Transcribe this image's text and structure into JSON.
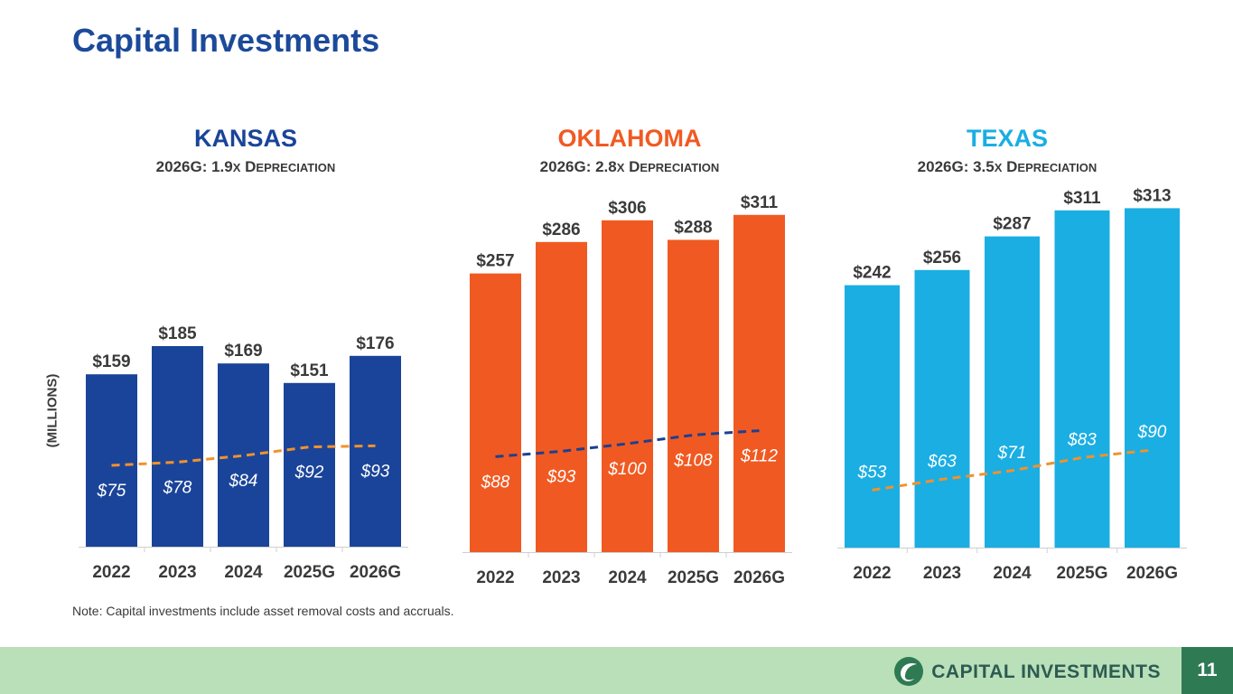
{
  "page": {
    "title": "Capital Investments",
    "y_unit_label": "(MILLIONS)",
    "note": "Note: Capital investments include asset removal costs and accruals."
  },
  "states": [
    {
      "name": "KANSAS",
      "subtitle_prefix": "2026G: 1.9",
      "subtitle_x": "X",
      "subtitle_d": "D",
      "subtitle_rest": "EPRECIATION",
      "color": "#1a4499"
    },
    {
      "name": "OKLAHOMA",
      "subtitle_prefix": "2026G: 2.8",
      "subtitle_x": "X",
      "subtitle_d": "D",
      "subtitle_rest": "EPRECIATION",
      "color": "#f05a22"
    },
    {
      "name": "TEXAS",
      "subtitle_prefix": "2026G: 3.5",
      "subtitle_x": "X",
      "subtitle_d": "D",
      "subtitle_rest": "EPRECIATION",
      "color": "#1aaee3"
    }
  ],
  "chart_data": [
    {
      "type": "bar",
      "title": "KANSAS",
      "categories": [
        "2022",
        "2023",
        "2024",
        "2025G",
        "2026G"
      ],
      "series": [
        {
          "name": "Capital Investments",
          "values": [
            159,
            185,
            169,
            151,
            176
          ],
          "labels": [
            "$159",
            "$185",
            "$169",
            "$151",
            "$176"
          ],
          "color": "#1a4499"
        },
        {
          "name": "Depreciation",
          "type": "line",
          "values": [
            75,
            78,
            84,
            92,
            93
          ],
          "labels": [
            "$75",
            "$78",
            "$84",
            "$92",
            "$93"
          ],
          "color": "#f0922e"
        }
      ],
      "ylim": [
        0,
        330
      ]
    },
    {
      "type": "bar",
      "title": "OKLAHOMA",
      "categories": [
        "2022",
        "2023",
        "2024",
        "2025G",
        "2026G"
      ],
      "series": [
        {
          "name": "Capital Investments",
          "values": [
            257,
            286,
            306,
            288,
            311
          ],
          "labels": [
            "$257",
            "$286",
            "$306",
            "$288",
            "$311"
          ],
          "color": "#f05a22"
        },
        {
          "name": "Depreciation",
          "type": "line",
          "values": [
            88,
            93,
            100,
            108,
            112
          ],
          "labels": [
            "$88",
            "$93",
            "$100",
            "$108",
            "$112"
          ],
          "color": "#1f3f8f"
        }
      ],
      "ylim": [
        0,
        330
      ]
    },
    {
      "type": "bar",
      "title": "TEXAS",
      "categories": [
        "2022",
        "2023",
        "2024",
        "2025G",
        "2026G"
      ],
      "series": [
        {
          "name": "Capital Investments",
          "values": [
            242,
            256,
            287,
            311,
            313
          ],
          "labels": [
            "$242",
            "$256",
            "$287",
            "$311",
            "$313"
          ],
          "color": "#1aaee3"
        },
        {
          "name": "Depreciation",
          "type": "line",
          "values": [
            53,
            63,
            71,
            83,
            90
          ],
          "labels": [
            "$53",
            "$63",
            "$71",
            "$83",
            "$90"
          ],
          "color": "#f0922e"
        }
      ],
      "ylim": [
        0,
        330
      ]
    }
  ],
  "footer": {
    "label": "CAPITAL INVESTMENTS",
    "page_number": "11",
    "background": "#b9e0b8",
    "accent": "#2e7a53",
    "logo_icon": "leaf-swirl-icon"
  }
}
